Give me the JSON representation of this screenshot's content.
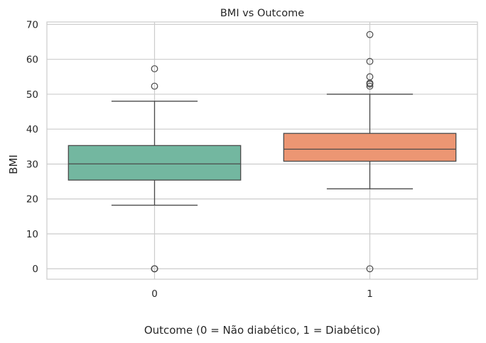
{
  "chart_data": {
    "type": "box",
    "title": "BMI vs Outcome",
    "xlabel": "Outcome (0 = Não diabético, 1 = Diabético)",
    "ylabel": "BMI",
    "ylim": [
      -3,
      70.7
    ],
    "yticks": [
      0,
      10,
      20,
      30,
      40,
      50,
      60,
      70
    ],
    "grid": true,
    "categories": [
      "0",
      "1"
    ],
    "boxes": [
      {
        "category": "0",
        "color": "#73b7a0",
        "whisker_low": 18.2,
        "q1": 25.4,
        "median": 30.05,
        "q3": 35.3,
        "whisker_high": 48.0,
        "outliers": [
          0,
          0,
          0,
          52.3,
          57.3
        ]
      },
      {
        "category": "1",
        "color": "#ec9673",
        "whisker_low": 22.9,
        "q1": 30.8,
        "median": 34.25,
        "q3": 38.78,
        "whisker_high": 50.0,
        "outliers": [
          0,
          52.3,
          52.9,
          53.2,
          55.0,
          59.4,
          67.1
        ]
      }
    ]
  }
}
